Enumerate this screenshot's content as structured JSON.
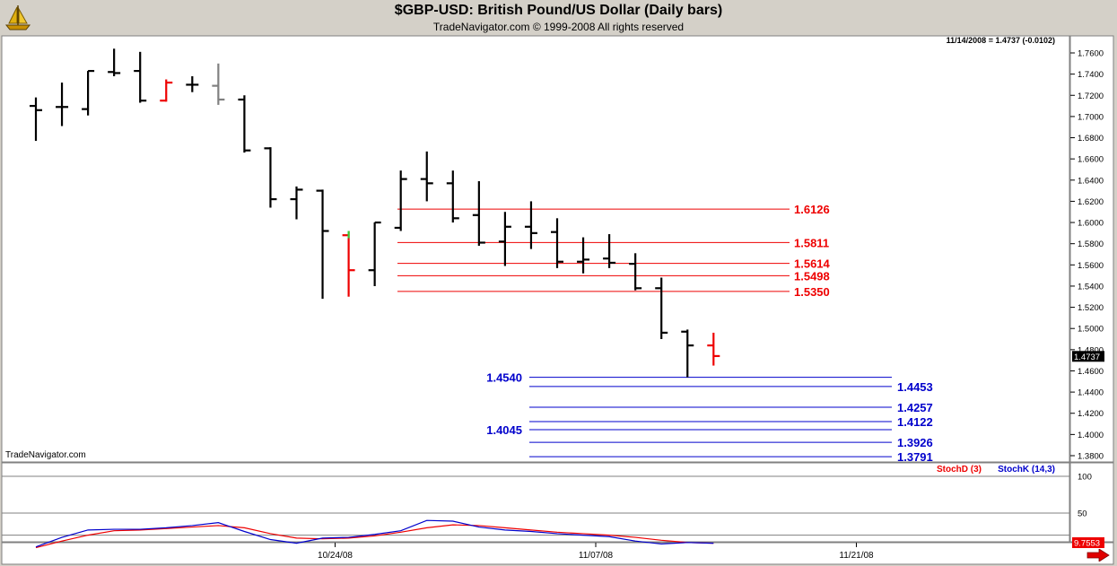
{
  "header": {
    "title": "$GBP-USD:  British Pound/US Dollar  (Daily bars)",
    "copyright": "TradeNavigator.com © 1999-2008 All rights reserved",
    "quote": "11/14/2008 = 1.4737 (-0.0102)",
    "watermark": "TradeNavigator.com"
  },
  "icons": {
    "logo": "sailboat-logo-icon",
    "scroll": "arrow-right-icon"
  },
  "colors": {
    "red": "#ee0000",
    "blue": "#0000cc",
    "up": "#33cc33",
    "gray": "#808080"
  },
  "chart_data": [
    {
      "type": "ohlc",
      "title": "$GBP-USD:  British Pound/US Dollar  (Daily bars)",
      "ylim": [
        1.375,
        1.774
      ],
      "y_ticks": [
        "1.7600",
        "1.7400",
        "1.7200",
        "1.7000",
        "1.6800",
        "1.6600",
        "1.6400",
        "1.6200",
        "1.6000",
        "1.5800",
        "1.5600",
        "1.5400",
        "1.5200",
        "1.5000",
        "1.4800",
        "1.4600",
        "1.4400",
        "1.4200",
        "1.4000",
        "1.3800"
      ],
      "x_ticks": [
        {
          "label": "10/24/08",
          "index": 10
        },
        {
          "label": "11/07/08",
          "index": 20
        },
        {
          "label": "11/21/08",
          "index": 30
        }
      ],
      "last_price": "1.4737",
      "bars": [
        {
          "o": 1.71,
          "h": 1.718,
          "l": 1.677,
          "c": 1.706,
          "color": "black"
        },
        {
          "o": 1.709,
          "h": 1.732,
          "l": 1.691,
          "c": 1.709,
          "color": "black"
        },
        {
          "o": 1.707,
          "h": 1.743,
          "l": 1.701,
          "c": 1.743,
          "color": "black"
        },
        {
          "o": 1.742,
          "h": 1.764,
          "l": 1.738,
          "c": 1.741,
          "color": "black"
        },
        {
          "o": 1.743,
          "h": 1.761,
          "l": 1.713,
          "c": 1.715,
          "color": "black"
        },
        {
          "o": 1.715,
          "h": 1.735,
          "l": 1.714,
          "c": 1.732,
          "color": "red"
        },
        {
          "o": 1.73,
          "h": 1.738,
          "l": 1.723,
          "c": 1.73,
          "color": "black"
        },
        {
          "o": 1.729,
          "h": 1.75,
          "l": 1.711,
          "c": 1.716,
          "color": "gray"
        },
        {
          "o": 1.716,
          "h": 1.72,
          "l": 1.666,
          "c": 1.668,
          "color": "black"
        },
        {
          "o": 1.67,
          "h": 1.671,
          "l": 1.614,
          "c": 1.622,
          "color": "black"
        },
        {
          "o": 1.622,
          "h": 1.634,
          "l": 1.603,
          "c": 1.631,
          "color": "black"
        },
        {
          "o": 1.63,
          "h": 1.631,
          "l": 1.528,
          "c": 1.592,
          "color": "black"
        },
        {
          "o": 1.588,
          "h": 1.592,
          "l": 1.53,
          "c": 1.555,
          "color": "red",
          "high_tick_color": "green"
        },
        {
          "o": 1.555,
          "h": 1.6,
          "l": 1.54,
          "c": 1.6,
          "color": "black"
        },
        {
          "o": 1.595,
          "h": 1.649,
          "l": 1.592,
          "c": 1.641,
          "color": "black"
        },
        {
          "o": 1.641,
          "h": 1.667,
          "l": 1.62,
          "c": 1.637,
          "color": "black"
        },
        {
          "o": 1.637,
          "h": 1.649,
          "l": 1.6,
          "c": 1.604,
          "color": "black"
        },
        {
          "o": 1.607,
          "h": 1.639,
          "l": 1.578,
          "c": 1.581,
          "color": "black"
        },
        {
          "o": 1.582,
          "h": 1.61,
          "l": 1.559,
          "c": 1.596,
          "color": "black"
        },
        {
          "o": 1.596,
          "h": 1.62,
          "l": 1.575,
          "c": 1.59,
          "color": "black"
        },
        {
          "o": 1.591,
          "h": 1.604,
          "l": 1.557,
          "c": 1.563,
          "color": "black"
        },
        {
          "o": 1.563,
          "h": 1.586,
          "l": 1.552,
          "c": 1.565,
          "color": "black"
        },
        {
          "o": 1.566,
          "h": 1.589,
          "l": 1.557,
          "c": 1.562,
          "color": "black"
        },
        {
          "o": 1.561,
          "h": 1.571,
          "l": 1.536,
          "c": 1.538,
          "color": "black"
        },
        {
          "o": 1.538,
          "h": 1.548,
          "l": 1.49,
          "c": 1.496,
          "color": "black"
        },
        {
          "o": 1.497,
          "h": 1.499,
          "l": 1.454,
          "c": 1.484,
          "color": "black"
        },
        {
          "o": 1.484,
          "h": 1.496,
          "l": 1.465,
          "c": 1.474,
          "color": "red"
        }
      ],
      "retracement_levels": [
        {
          "value": 1.6126,
          "label": "1.6126",
          "color": "red",
          "label_side": "right"
        },
        {
          "value": 1.5811,
          "label": "1.5811",
          "color": "red",
          "label_side": "right"
        },
        {
          "value": 1.5614,
          "label": "1.5614",
          "color": "red",
          "label_side": "right"
        },
        {
          "value": 1.5498,
          "label": "1.5498",
          "color": "red",
          "label_side": "right"
        },
        {
          "value": 1.535,
          "label": "1.5350",
          "color": "red",
          "label_side": "right"
        }
      ],
      "extension_levels": [
        {
          "value": 1.454,
          "label": "1.4540",
          "color": "blue",
          "label_side": "left"
        },
        {
          "value": 1.4453,
          "label": "1.4453",
          "color": "blue",
          "label_side": "right"
        },
        {
          "value": 1.4257,
          "label": "1.4257",
          "color": "blue",
          "label_side": "right"
        },
        {
          "value": 1.4122,
          "label": "1.4122",
          "color": "blue",
          "label_side": "right"
        },
        {
          "value": 1.4045,
          "label": "1.4045",
          "color": "blue",
          "label_side": "left"
        },
        {
          "value": 1.3926,
          "label": "1.3926",
          "color": "blue",
          "label_side": "right"
        },
        {
          "value": 1.3791,
          "label": "1.3791",
          "color": "blue",
          "label_side": "right"
        }
      ]
    },
    {
      "type": "line",
      "ylim": [
        0,
        100
      ],
      "y_ticks": [
        "100",
        "50"
      ],
      "last_value": "9.7553",
      "legend": [
        {
          "label": "StochD (3)",
          "color": "red"
        },
        {
          "label": "StochK (14,3)",
          "color": "blue"
        }
      ],
      "series": [
        {
          "name": "StochD (3)",
          "color": "red",
          "values": [
            3,
            12,
            20,
            26,
            27,
            29,
            31,
            33,
            30,
            22,
            16,
            15,
            16,
            19,
            24,
            30,
            34,
            33,
            30,
            27,
            24,
            22,
            20,
            17,
            13,
            10,
            9
          ]
        },
        {
          "name": "StochK (14,3)",
          "color": "blue",
          "values": [
            4,
            17,
            27,
            28,
            28,
            30,
            33,
            37,
            25,
            14,
            9,
            16,
            17,
            21,
            26,
            40,
            39,
            31,
            27,
            25,
            22,
            20,
            18,
            12,
            8,
            10,
            9
          ]
        }
      ]
    }
  ]
}
